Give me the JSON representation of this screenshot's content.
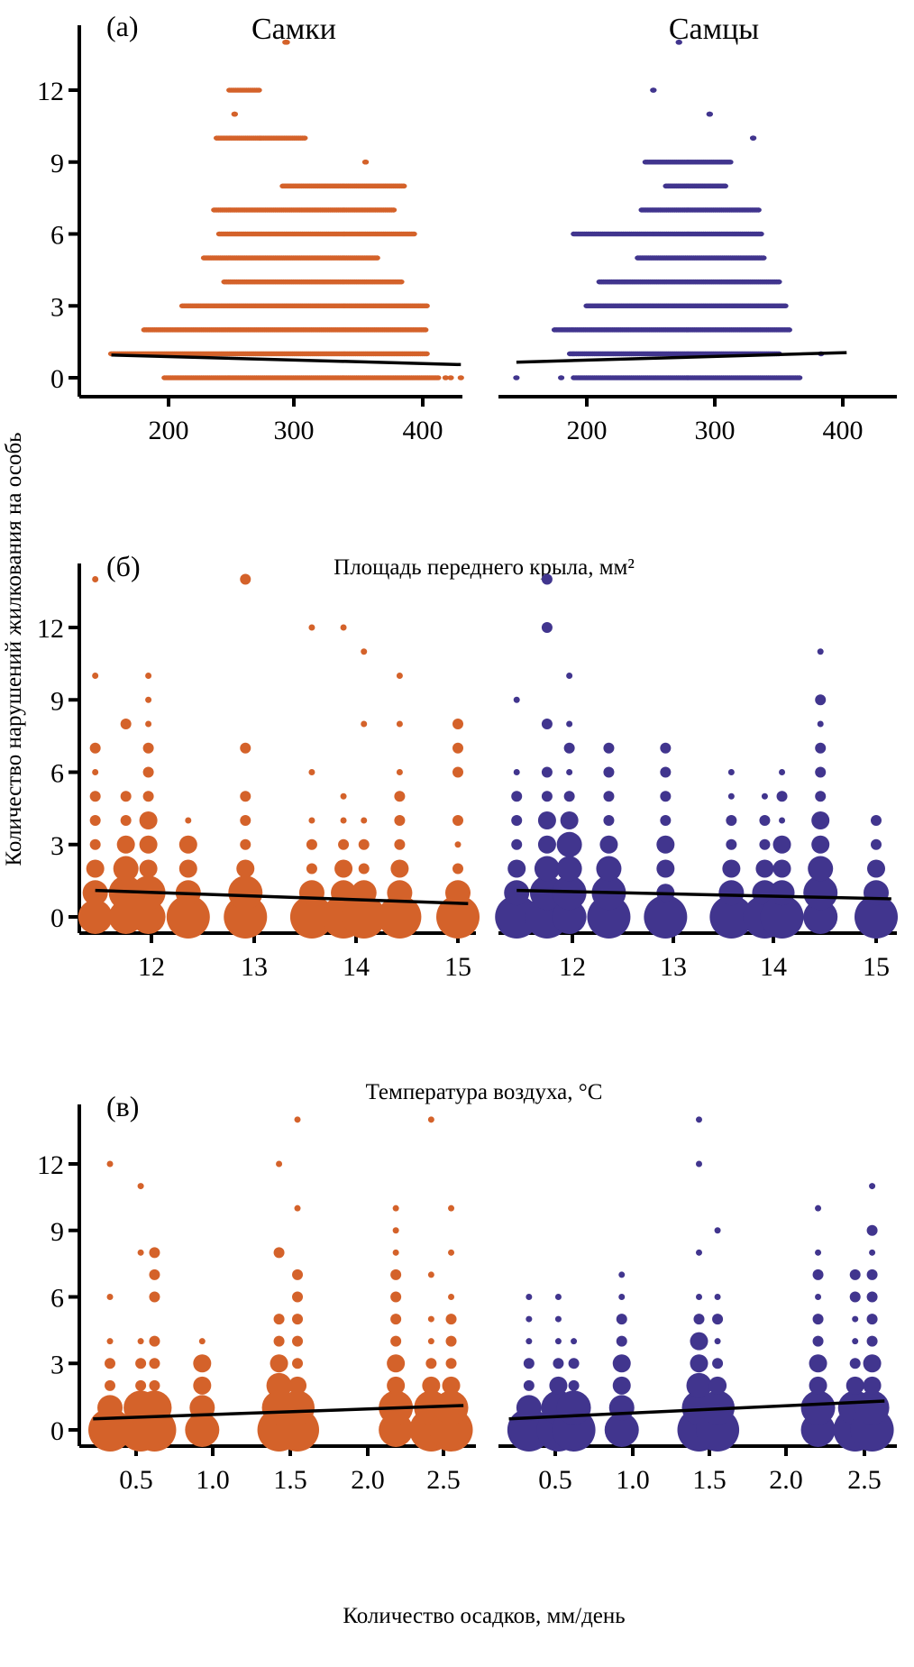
{
  "figure": {
    "column_titles": [
      "Самки",
      "Самцы"
    ],
    "y_axis_title": "Количество нарушений жилкования на особь",
    "colors": {
      "females": "#D4622A",
      "males": "#41358E",
      "trend": "#000000"
    }
  },
  "chart_data": [
    {
      "id": "a",
      "panel_label": "(а)",
      "type": "scatter",
      "xlabel": "Площадь переднего крыла, мм²",
      "ylabel": "Количество нарушений жилкования на особь",
      "yticks": [
        "0",
        "3",
        "6",
        "9",
        "12"
      ],
      "ylim": [
        -0.6,
        14.3
      ],
      "grid": false,
      "series": [
        {
          "name": "Самки",
          "xticks": [
            "200",
            "300",
            "400"
          ],
          "xlim": [
            130,
            440
          ],
          "points": [
            {
              "y": 0,
              "x_from": 197,
              "x_to": 412,
              "extra": [
                418,
                422,
                430
              ]
            },
            {
              "y": 1,
              "x_from": 155,
              "x_to": 403,
              "extra": []
            },
            {
              "y": 2,
              "x_from": 181,
              "x_to": 402,
              "extra": []
            },
            {
              "y": 3,
              "x_from": 211,
              "x_to": 403,
              "extra": []
            },
            {
              "y": 4,
              "x_from": 244,
              "x_to": 383,
              "extra": []
            },
            {
              "y": 5,
              "x_from": 228,
              "x_to": 364,
              "extra": []
            },
            {
              "y": 6,
              "x_from": 240,
              "x_to": 393,
              "extra": []
            },
            {
              "y": 7,
              "x_from": 236,
              "x_to": 377,
              "extra": []
            },
            {
              "y": 8,
              "x_from": 290,
              "x_to": 385,
              "extra": []
            },
            {
              "y": 9,
              "x_from": 355,
              "x_to": 355,
              "extra": []
            },
            {
              "y": 10,
              "x_from": 238,
              "x_to": 307,
              "extra": [
                272
              ]
            },
            {
              "y": 11,
              "x_from": 252,
              "x_to": 252,
              "extra": []
            },
            {
              "y": 12,
              "x_from": 248,
              "x_to": 271,
              "extra": []
            },
            {
              "y": 14,
              "x_from": 292,
              "x_to": 293,
              "extra": []
            }
          ],
          "trend": {
            "x": [
              155,
              430
            ],
            "y": [
              0.95,
              0.55
            ]
          }
        },
        {
          "name": "Самцы",
          "xticks": [
            "200",
            "300",
            "400"
          ],
          "xlim": [
            130,
            440
          ],
          "points": [
            {
              "y": 0,
              "x_from": 190,
              "x_to": 366,
              "extra": [
                145,
                180
              ]
            },
            {
              "y": 1,
              "x_from": 187,
              "x_to": 350,
              "extra": [
                383
              ]
            },
            {
              "y": 2,
              "x_from": 175,
              "x_to": 358,
              "extra": []
            },
            {
              "y": 3,
              "x_from": 200,
              "x_to": 355,
              "extra": []
            },
            {
              "y": 4,
              "x_from": 210,
              "x_to": 350,
              "extra": []
            },
            {
              "y": 5,
              "x_from": 240,
              "x_to": 338,
              "extra": []
            },
            {
              "y": 6,
              "x_from": 190,
              "x_to": 336,
              "extra": []
            },
            {
              "y": 7,
              "x_from": 243,
              "x_to": 334,
              "extra": []
            },
            {
              "y": 8,
              "x_from": 262,
              "x_to": 308,
              "extra": []
            },
            {
              "y": 9,
              "x_from": 246,
              "x_to": 312,
              "extra": []
            },
            {
              "y": 10,
              "x_from": 330,
              "x_to": 330,
              "extra": []
            },
            {
              "y": 11,
              "x_from": 296,
              "x_to": 296,
              "extra": []
            },
            {
              "y": 12,
              "x_from": 252,
              "x_to": 252,
              "extra": []
            },
            {
              "y": 14,
              "x_from": 272,
              "x_to": 272,
              "extra": []
            }
          ],
          "trend": {
            "x": [
              145,
              403
            ],
            "y": [
              0.65,
              1.05
            ]
          }
        }
      ]
    },
    {
      "id": "b",
      "panel_label": "(б)",
      "type": "scatter",
      "xlabel": "Температура воздуха, °C",
      "ylabel": "Количество нарушений жилкования на особь",
      "yticks": [
        "0",
        "3",
        "6",
        "9",
        "12"
      ],
      "ylim": [
        -0.7,
        14.3
      ],
      "grid": false,
      "note": "bubble size proportional to number of individuals",
      "series": [
        {
          "name": "Самки",
          "xticks": [
            "12",
            "13",
            "14",
            "15"
          ],
          "xlim": [
            11.2,
            15.2
          ],
          "columns": [
            {
              "x": 11.45,
              "counts": {
                "0": 5,
                "1": 4,
                "2": 3,
                "3": 2,
                "4": 2,
                "5": 2,
                "6": 1,
                "7": 2,
                "10": 1,
                "14": 1
              }
            },
            {
              "x": 11.75,
              "counts": {
                "0": 5,
                "1": 5,
                "2": 4,
                "3": 3,
                "4": 2,
                "5": 2,
                "8": 2
              }
            },
            {
              "x": 11.97,
              "counts": {
                "0": 5,
                "1": 5,
                "2": 3,
                "3": 3,
                "4": 3,
                "5": 2,
                "6": 2,
                "7": 2,
                "8": 1,
                "9": 1,
                "10": 1
              }
            },
            {
              "x": 12.36,
              "counts": {
                "0": 6,
                "1": 4,
                "2": 3,
                "3": 3,
                "4": 1
              }
            },
            {
              "x": 12.92,
              "counts": {
                "0": 6,
                "1": 5,
                "2": 3,
                "3": 2,
                "4": 2,
                "5": 2,
                "7": 2,
                "14": 2
              }
            },
            {
              "x": 13.57,
              "counts": {
                "0": 6,
                "1": 4,
                "2": 2,
                "3": 2,
                "4": 1,
                "6": 1,
                "12": 1
              }
            },
            {
              "x": 13.88,
              "counts": {
                "0": 6,
                "1": 4,
                "2": 3,
                "3": 2,
                "4": 1,
                "5": 1,
                "12": 1
              }
            },
            {
              "x": 14.08,
              "counts": {
                "0": 6,
                "1": 4,
                "2": 2,
                "3": 2,
                "4": 1,
                "8": 1,
                "11": 1
              }
            },
            {
              "x": 14.43,
              "counts": {
                "0": 6,
                "1": 4,
                "2": 3,
                "3": 2,
                "4": 2,
                "5": 2,
                "6": 1,
                "8": 1,
                "10": 1
              }
            },
            {
              "x": 15.0,
              "counts": {
                "0": 6,
                "1": 4,
                "2": 2,
                "3": 1,
                "4": 2,
                "6": 2,
                "7": 2,
                "8": 2
              }
            }
          ],
          "trend": {
            "x": [
              11.45,
              15.1
            ],
            "y": [
              1.1,
              0.55
            ]
          }
        },
        {
          "name": "Самцы",
          "xticks": [
            "12",
            "13",
            "14",
            "15"
          ],
          "xlim": [
            11.2,
            15.2
          ],
          "columns": [
            {
              "x": 11.45,
              "counts": {
                "0": 6,
                "1": 4,
                "2": 3,
                "3": 2,
                "4": 2,
                "5": 2,
                "6": 1,
                "9": 1
              }
            },
            {
              "x": 11.75,
              "counts": {
                "0": 6,
                "1": 5,
                "2": 4,
                "3": 3,
                "4": 3,
                "5": 2,
                "6": 2,
                "8": 2,
                "12": 2,
                "14": 2
              }
            },
            {
              "x": 11.97,
              "counts": {
                "0": 5,
                "1": 5,
                "2": 4,
                "3": 4,
                "4": 3,
                "5": 2,
                "6": 1,
                "7": 2,
                "8": 1,
                "10": 1
              }
            },
            {
              "x": 12.36,
              "counts": {
                "0": 6,
                "1": 5,
                "2": 4,
                "3": 3,
                "4": 2,
                "5": 2,
                "6": 2,
                "7": 2
              }
            },
            {
              "x": 12.92,
              "counts": {
                "0": 6,
                "1": 3,
                "2": 3,
                "3": 3,
                "4": 2,
                "5": 2,
                "6": 2,
                "7": 2
              }
            },
            {
              "x": 13.57,
              "counts": {
                "0": 6,
                "1": 4,
                "2": 3,
                "3": 2,
                "4": 2,
                "5": 1,
                "6": 1
              }
            },
            {
              "x": 13.9,
              "counts": {
                "0": 6,
                "1": 4,
                "2": 3,
                "3": 2,
                "4": 2,
                "5": 1
              }
            },
            {
              "x": 14.07,
              "counts": {
                "0": 6,
                "1": 4,
                "2": 3,
                "3": 3,
                "4": 1,
                "5": 2,
                "6": 1
              }
            },
            {
              "x": 14.45,
              "counts": {
                "0": 5,
                "1": 5,
                "2": 4,
                "3": 3,
                "4": 3,
                "5": 2,
                "6": 2,
                "7": 2,
                "8": 1,
                "9": 2,
                "11": 1
              }
            },
            {
              "x": 15.0,
              "counts": {
                "0": 6,
                "1": 4,
                "2": 3,
                "3": 2,
                "4": 2
              }
            }
          ],
          "trend": {
            "x": [
              11.45,
              15.15
            ],
            "y": [
              1.1,
              0.75
            ]
          }
        }
      ]
    },
    {
      "id": "c",
      "panel_label": "(в)",
      "type": "scatter",
      "xlabel": "Количество осадков, мм/день",
      "ylabel": "Количество нарушений жилкования на особь",
      "yticks": [
        "0",
        "3",
        "6",
        "9",
        "12"
      ],
      "ylim": [
        -0.7,
        14.3
      ],
      "grid": false,
      "note": "bubble size proportional to number of individuals",
      "series": [
        {
          "name": "Самки",
          "xticks": [
            "0.5",
            "1.0",
            "1.5",
            "2.0",
            "2.5"
          ],
          "xlim": [
            0.13,
            2.65
          ],
          "columns": [
            {
              "x": 0.33,
              "counts": {
                "0": 6,
                "1": 4,
                "2": 2,
                "3": 2,
                "4": 1,
                "6": 1,
                "12": 1
              }
            },
            {
              "x": 0.53,
              "counts": {
                "0": 6,
                "1": 5,
                "2": 2,
                "3": 2,
                "4": 1,
                "8": 1,
                "11": 1
              }
            },
            {
              "x": 0.62,
              "counts": {
                "0": 6,
                "1": 5,
                "2": 2,
                "3": 2,
                "4": 2,
                "6": 2,
                "7": 2,
                "8": 2
              }
            },
            {
              "x": 0.93,
              "counts": {
                "0": 5,
                "1": 4,
                "2": 3,
                "3": 3,
                "4": 1
              }
            },
            {
              "x": 1.43,
              "counts": {
                "0": 6,
                "1": 5,
                "2": 4,
                "3": 3,
                "4": 2,
                "5": 2,
                "8": 2,
                "12": 1
              }
            },
            {
              "x": 1.55,
              "counts": {
                "0": 6,
                "1": 5,
                "2": 3,
                "3": 2,
                "4": 2,
                "5": 2,
                "6": 2,
                "7": 2,
                "10": 1,
                "14": 1
              }
            },
            {
              "x": 2.19,
              "counts": {
                "0": 5,
                "1": 5,
                "2": 3,
                "3": 3,
                "4": 2,
                "5": 2,
                "6": 2,
                "7": 2,
                "8": 1,
                "9": 1,
                "10": 1
              }
            },
            {
              "x": 2.42,
              "counts": {
                "0": 6,
                "1": 5,
                "2": 3,
                "3": 2,
                "4": 1,
                "5": 1,
                "7": 1,
                "14": 1
              }
            },
            {
              "x": 2.55,
              "counts": {
                "0": 6,
                "1": 5,
                "2": 3,
                "3": 2,
                "4": 2,
                "5": 2,
                "6": 1,
                "8": 1,
                "10": 1
              }
            }
          ],
          "trend": {
            "x": [
              0.22,
              2.63
            ],
            "y": [
              0.5,
              1.1
            ]
          }
        },
        {
          "name": "Самцы",
          "xticks": [
            "0.5",
            "1.0",
            "1.5",
            "2.0",
            "2.5"
          ],
          "xlim": [
            0.13,
            2.65
          ],
          "columns": [
            {
              "x": 0.33,
              "counts": {
                "0": 6,
                "1": 4,
                "2": 2,
                "3": 2,
                "4": 1,
                "5": 1,
                "6": 1
              }
            },
            {
              "x": 0.52,
              "counts": {
                "0": 6,
                "1": 5,
                "2": 3,
                "3": 2,
                "4": 1,
                "5": 1,
                "6": 1
              }
            },
            {
              "x": 0.62,
              "counts": {
                "0": 6,
                "1": 5,
                "2": 2,
                "3": 2,
                "4": 1
              }
            },
            {
              "x": 0.93,
              "counts": {
                "0": 5,
                "1": 4,
                "2": 3,
                "3": 3,
                "4": 2,
                "5": 2,
                "6": 1,
                "7": 1
              }
            },
            {
              "x": 1.43,
              "counts": {
                "0": 6,
                "1": 5,
                "2": 4,
                "3": 3,
                "4": 3,
                "5": 2,
                "6": 1,
                "8": 1,
                "12": 1,
                "14": 1
              }
            },
            {
              "x": 1.55,
              "counts": {
                "0": 6,
                "1": 5,
                "2": 3,
                "3": 2,
                "4": 1,
                "5": 2,
                "6": 1,
                "9": 1
              }
            },
            {
              "x": 2.2,
              "counts": {
                "0": 5,
                "1": 5,
                "2": 3,
                "3": 3,
                "4": 2,
                "5": 2,
                "6": 1,
                "7": 2,
                "8": 1,
                "10": 1
              }
            },
            {
              "x": 2.44,
              "counts": {
                "0": 6,
                "1": 5,
                "2": 3,
                "3": 2,
                "4": 1,
                "5": 1,
                "6": 2,
                "7": 2
              }
            },
            {
              "x": 2.55,
              "counts": {
                "0": 6,
                "1": 5,
                "2": 3,
                "3": 3,
                "4": 2,
                "5": 2,
                "6": 2,
                "7": 2,
                "8": 1,
                "9": 2,
                "11": 1
              }
            }
          ],
          "trend": {
            "x": [
              0.2,
              2.63
            ],
            "y": [
              0.5,
              1.3
            ]
          }
        }
      ]
    }
  ]
}
